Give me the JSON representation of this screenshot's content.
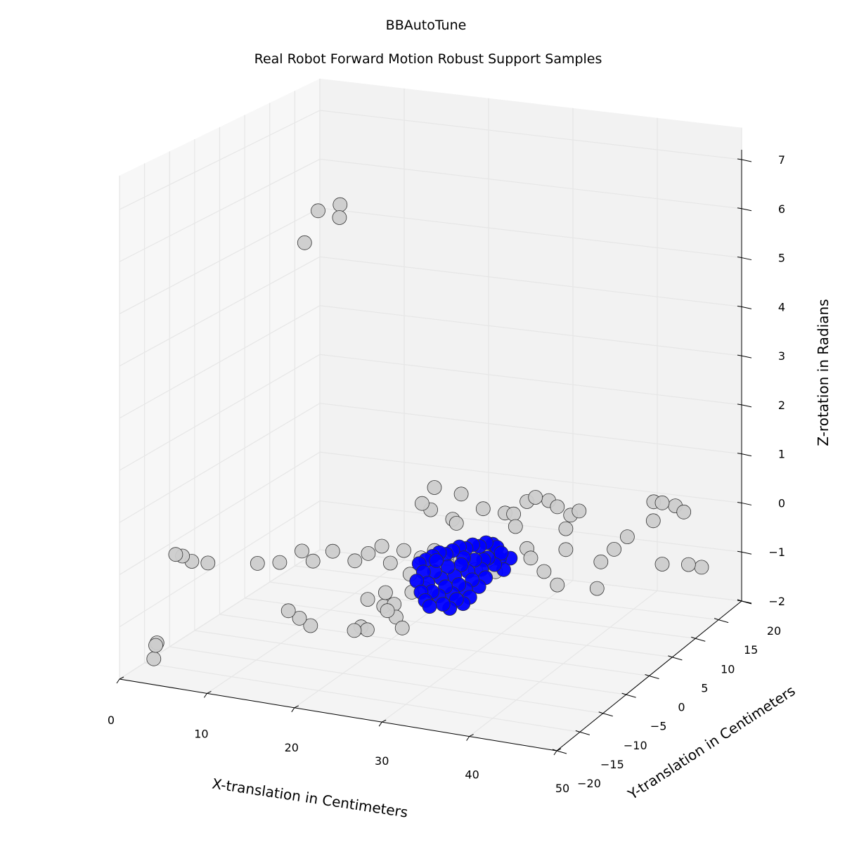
{
  "chart_data": {
    "type": "scatter",
    "projection": "3d",
    "title": "BBAutoTune",
    "subtitle": "Real Robot Forward Motion Robust Support Samples",
    "xlabel": "X-translation in Centimeters",
    "ylabel": "Y-translation in Centimeters",
    "zlabel": "Z-rotation in Radians",
    "xlim": [
      0,
      50
    ],
    "ylim": [
      -20,
      20
    ],
    "zlim": [
      -2,
      7
    ],
    "xticks": [
      "0",
      "10",
      "20",
      "30",
      "40",
      "50"
    ],
    "yticks": [
      "−20",
      "−15",
      "−10",
      "−5",
      "0",
      "5",
      "10",
      "15",
      "20"
    ],
    "zticks": [
      "−2",
      "−1",
      "0",
      "1",
      "2",
      "3",
      "4",
      "5",
      "6",
      "7"
    ],
    "grid": true,
    "colors": {
      "samples": "#cccccc",
      "robust_support": "#0000ff",
      "marker_edge": "#333333",
      "pane_left": "#f7f7f7",
      "pane_back": "#f2f2f2",
      "pane_floor": "#f4f4f4",
      "grid": "#e6e6e6"
    },
    "series": [
      {
        "color": "#cccccc",
        "points": [
          [
            3,
            -14,
            0.1
          ],
          [
            3.5,
            -13.5,
            0.05
          ],
          [
            4,
            -12.5,
            -0.1
          ],
          [
            5,
            -11,
            -0.2
          ],
          [
            2,
            -16,
            -1.5
          ],
          [
            2.5,
            -17.5,
            -1.7
          ],
          [
            3,
            -18,
            -1.4
          ],
          [
            9,
            -8,
            -0.3
          ],
          [
            11,
            -7,
            -0.3
          ],
          [
            13,
            -6,
            -0.1
          ],
          [
            14,
            -5.5,
            -0.3
          ],
          [
            16,
            -5,
            -0.1
          ],
          [
            12,
            -7,
            -1.2
          ],
          [
            13,
            -6.5,
            -1.35
          ],
          [
            14,
            -6,
            -1.5
          ],
          [
            20,
            -2,
            -0.1
          ],
          [
            22,
            -1,
            -0.2
          ],
          [
            24,
            -1,
            -0.3
          ],
          [
            25,
            0,
            -0.2
          ],
          [
            27,
            0,
            -0.2
          ],
          [
            18,
            -4,
            -0.3
          ],
          [
            19,
            -3,
            -0.2
          ],
          [
            21,
            -2,
            -0.4
          ],
          [
            23,
            -1.5,
            -0.6
          ],
          [
            23.5,
            -2,
            -0.9
          ],
          [
            21,
            -3,
            -0.9
          ],
          [
            19.5,
            -4,
            -1.0
          ],
          [
            20.5,
            -2.5,
            -1.2
          ],
          [
            22,
            -3,
            -1.1
          ],
          [
            25,
            -2,
            -0.8
          ],
          [
            22.5,
            -3.5,
            -1.3
          ],
          [
            21.5,
            -3.5,
            -1.2
          ],
          [
            23.5,
            -4,
            -1.45
          ],
          [
            20,
            -5,
            -1.5
          ],
          [
            18.5,
            -5,
            -1.55
          ],
          [
            19,
            -4.5,
            -1.5
          ],
          [
            26,
            2,
            0.3
          ],
          [
            27,
            1,
            0.3
          ],
          [
            24,
            1,
            0.5
          ],
          [
            23,
            1,
            0.6
          ],
          [
            25,
            0,
            1.0
          ],
          [
            27,
            2,
            0.8
          ],
          [
            29,
            3,
            0.5
          ],
          [
            31,
            4,
            0.4
          ],
          [
            29,
            1,
            -0.3
          ],
          [
            28,
            0,
            -0.3
          ],
          [
            29.5,
            0.5,
            -0.5
          ],
          [
            30.5,
            1,
            -0.2
          ],
          [
            30,
            2,
            -0.3
          ],
          [
            31,
            2,
            -0.6
          ],
          [
            32,
            4,
            0.4
          ],
          [
            32.5,
            3.5,
            0.2
          ],
          [
            33,
            5,
            0.6
          ],
          [
            34,
            5,
            0.7
          ],
          [
            35,
            6,
            0.6
          ],
          [
            36,
            6,
            0.5
          ],
          [
            37,
            7,
            0.3
          ],
          [
            38,
            7,
            0.4
          ],
          [
            37,
            6,
            0.1
          ],
          [
            33,
            5,
            -0.3
          ],
          [
            34,
            4,
            -0.4
          ],
          [
            35,
            5,
            -0.7
          ],
          [
            36,
            6,
            -1.0
          ],
          [
            37,
            6,
            -0.3
          ],
          [
            39,
            9,
            -1.2
          ],
          [
            40,
            8,
            -0.6
          ],
          [
            41,
            9,
            -0.4
          ],
          [
            42,
            10,
            -0.2
          ],
          [
            44,
            12,
            0.4
          ],
          [
            45,
            12,
            0.4
          ],
          [
            46,
            13,
            0.3
          ],
          [
            44.5,
            11,
            0.1
          ],
          [
            47,
            13,
            0.2
          ],
          [
            45,
            12,
            -0.8
          ],
          [
            47,
            14,
            -0.9
          ],
          [
            48,
            15,
            -1.0
          ],
          [
            8,
            6,
            5.8
          ],
          [
            10,
            7,
            5.9
          ],
          [
            10.5,
            6,
            5.7
          ],
          [
            7,
            5,
            5.2
          ]
        ]
      },
      {
        "color": "#0000ff",
        "points": [
          [
            24,
            0,
            -0.4
          ],
          [
            24.5,
            0.5,
            -0.35
          ],
          [
            25,
            1,
            -0.3
          ],
          [
            25.5,
            1.5,
            -0.35
          ],
          [
            26,
            2,
            -0.3
          ],
          [
            26.5,
            2.5,
            -0.25
          ],
          [
            27,
            3,
            -0.3
          ],
          [
            27.5,
            3.5,
            -0.25
          ],
          [
            28,
            4,
            -0.3
          ],
          [
            28.5,
            4.5,
            -0.25
          ],
          [
            29,
            5,
            -0.3
          ],
          [
            29.5,
            5,
            -0.35
          ],
          [
            23.5,
            -0.5,
            -0.45
          ],
          [
            24,
            -0.5,
            -0.6
          ],
          [
            25,
            0,
            -0.6
          ],
          [
            26,
            1,
            -0.55
          ],
          [
            27,
            2,
            -0.55
          ],
          [
            28,
            3,
            -0.5
          ],
          [
            29,
            4,
            -0.5
          ],
          [
            30,
            5,
            -0.45
          ],
          [
            23.5,
            -1,
            -0.75
          ],
          [
            24.5,
            -0.5,
            -0.8
          ],
          [
            25.5,
            0.5,
            -0.75
          ],
          [
            26.5,
            1.5,
            -0.75
          ],
          [
            27.5,
            2.5,
            -0.7
          ],
          [
            28.5,
            3.5,
            -0.7
          ],
          [
            29.5,
            4.5,
            -0.65
          ],
          [
            24,
            -1,
            -0.95
          ],
          [
            25,
            -0.5,
            -0.95
          ],
          [
            26,
            0.5,
            -0.9
          ],
          [
            27,
            1.5,
            -0.9
          ],
          [
            28,
            2.5,
            -0.85
          ],
          [
            29,
            3.5,
            -0.85
          ],
          [
            24.5,
            -1,
            -1.1
          ],
          [
            25.5,
            0,
            -1.05
          ],
          [
            26.5,
            1,
            -1.05
          ],
          [
            27.5,
            2,
            -1.0
          ],
          [
            28.5,
            3,
            -1.0
          ],
          [
            25,
            -1,
            -1.2
          ],
          [
            26,
            0,
            -1.2
          ],
          [
            27,
            1,
            -1.15
          ],
          [
            28,
            2,
            -1.15
          ],
          [
            26.5,
            0.5,
            -1.3
          ],
          [
            27.5,
            1.5,
            -1.25
          ],
          [
            25.5,
            -0.5,
            -0.35
          ],
          [
            27,
            2.5,
            -0.45
          ],
          [
            28.5,
            4,
            -0.55
          ],
          [
            29.5,
            5.5,
            -0.6
          ],
          [
            30,
            5.5,
            -0.8
          ],
          [
            30.5,
            6,
            -0.6
          ]
        ]
      }
    ]
  }
}
